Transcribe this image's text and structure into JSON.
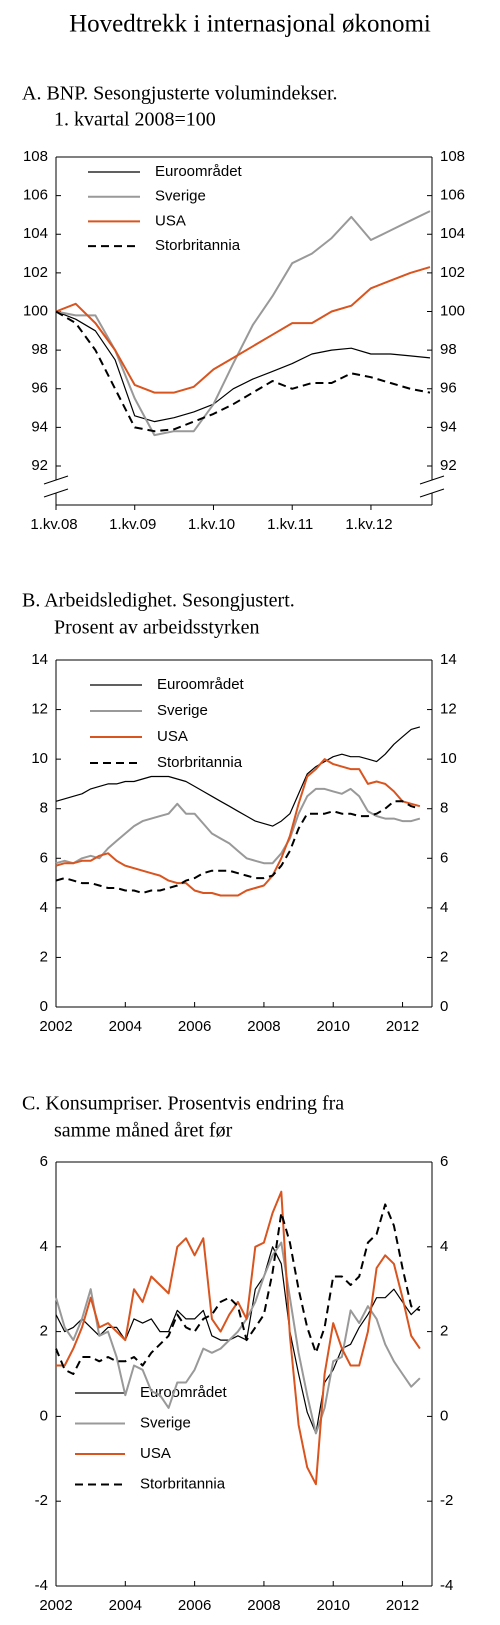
{
  "title": "Hovedtrekk i internasjonal økonomi",
  "chart_data": [
    {
      "type": "line",
      "title": "A. BNP. Sesongjusterte volumindekser.",
      "subtitle": "1. kvartal 2008=100",
      "categories": [
        "1.kv.08",
        null,
        null,
        null,
        "1.kv.09",
        null,
        null,
        null,
        "1.kv.10",
        null,
        null,
        null,
        "1.kv.11",
        null,
        null,
        null,
        "1.kv.12",
        null,
        null,
        null
      ],
      "ylim": [
        92,
        108
      ],
      "yticks": [
        92,
        94,
        96,
        98,
        100,
        102,
        104,
        106,
        108
      ],
      "legend": "upper left",
      "axis_break": true,
      "series": [
        {
          "name": "Euroområdet",
          "color": "#000000",
          "linestyle": "solid",
          "values": [
            100,
            99.6,
            99.0,
            97.5,
            94.6,
            94.3,
            94.5,
            94.8,
            95.2,
            96.0,
            96.5,
            96.9,
            97.3,
            97.8,
            98.0,
            98.1,
            97.8,
            97.8,
            97.7,
            97.6
          ]
        },
        {
          "name": "Sverige",
          "color": "#999999",
          "linestyle": "solid",
          "values": [
            100,
            99.8,
            99.8,
            98.0,
            95.5,
            93.6,
            93.8,
            93.8,
            95.2,
            97.3,
            99.3,
            100.8,
            102.5,
            103.0,
            103.8,
            104.9,
            103.7,
            104.2,
            104.7,
            105.2
          ]
        },
        {
          "name": "USA",
          "color": "#d9541e",
          "linestyle": "solid",
          "values": [
            100,
            100.4,
            99.4,
            98.0,
            96.2,
            95.8,
            95.8,
            96.1,
            97.0,
            97.6,
            98.2,
            98.8,
            99.4,
            99.4,
            100.0,
            100.3,
            101.2,
            101.6,
            102.0,
            102.3
          ]
        },
        {
          "name": "Storbritannia",
          "color": "#000000",
          "linestyle": "dashed",
          "values": [
            100,
            99.4,
            98.0,
            96.0,
            94.0,
            93.8,
            93.9,
            94.3,
            94.7,
            95.2,
            95.8,
            96.4,
            96.0,
            96.3,
            96.3,
            96.8,
            96.6,
            96.3,
            96.0,
            95.8
          ]
        }
      ]
    },
    {
      "type": "line",
      "title": "B. Arbeidsledighet. Sesongjustert.",
      "subtitle": "Prosent av arbeidsstyrken",
      "x": [
        2002,
        2002.25,
        2002.5,
        2002.75,
        2003,
        2003.25,
        2003.5,
        2003.75,
        2004,
        2004.25,
        2004.5,
        2004.75,
        2005,
        2005.25,
        2005.5,
        2005.75,
        2006,
        2006.25,
        2006.5,
        2006.75,
        2007,
        2007.25,
        2007.5,
        2007.75,
        2008,
        2008.25,
        2008.5,
        2008.75,
        2009,
        2009.25,
        2009.5,
        2009.75,
        2010,
        2010.25,
        2010.5,
        2010.75,
        2011,
        2011.25,
        2011.5,
        2011.75,
        2012,
        2012.25,
        2012.5
      ],
      "xlim": [
        2002,
        2012.85
      ],
      "xticks": [
        2002,
        2004,
        2006,
        2008,
        2010,
        2012
      ],
      "ylim": [
        0,
        14
      ],
      "yticks": [
        0,
        2,
        4,
        6,
        8,
        10,
        12,
        14
      ],
      "legend": "upper left",
      "series": [
        {
          "name": "Euroområdet",
          "color": "#000000",
          "linestyle": "solid",
          "values": [
            8.3,
            8.4,
            8.5,
            8.6,
            8.8,
            8.9,
            9.0,
            9.0,
            9.1,
            9.1,
            9.2,
            9.3,
            9.3,
            9.3,
            9.2,
            9.1,
            8.9,
            8.7,
            8.5,
            8.3,
            8.1,
            7.9,
            7.7,
            7.5,
            7.4,
            7.3,
            7.5,
            7.8,
            8.6,
            9.4,
            9.7,
            9.9,
            10.1,
            10.2,
            10.1,
            10.1,
            10.0,
            9.9,
            10.2,
            10.6,
            10.9,
            11.2,
            11.3
          ]
        },
        {
          "name": "Sverige",
          "color": "#999999",
          "linestyle": "solid",
          "values": [
            5.8,
            5.9,
            5.8,
            6.0,
            6.1,
            6.0,
            6.4,
            6.7,
            7.0,
            7.3,
            7.5,
            7.6,
            7.7,
            7.8,
            8.2,
            7.8,
            7.8,
            7.4,
            7.0,
            6.8,
            6.6,
            6.3,
            6.0,
            5.9,
            5.8,
            5.8,
            6.2,
            6.8,
            7.8,
            8.5,
            8.8,
            8.8,
            8.7,
            8.6,
            8.8,
            8.5,
            7.9,
            7.7,
            7.6,
            7.6,
            7.5,
            7.5,
            7.6
          ]
        },
        {
          "name": "USA",
          "color": "#d9541e",
          "linestyle": "solid",
          "values": [
            5.7,
            5.8,
            5.8,
            5.9,
            5.9,
            6.1,
            6.2,
            5.9,
            5.7,
            5.6,
            5.5,
            5.4,
            5.3,
            5.1,
            5.0,
            5.0,
            4.7,
            4.6,
            4.6,
            4.5,
            4.5,
            4.5,
            4.7,
            4.8,
            4.9,
            5.3,
            6.0,
            6.9,
            8.2,
            9.3,
            9.6,
            10.0,
            9.8,
            9.7,
            9.6,
            9.6,
            9.0,
            9.1,
            9.0,
            8.7,
            8.3,
            8.2,
            8.1
          ]
        },
        {
          "name": "Storbritannia",
          "color": "#000000",
          "linestyle": "dashed",
          "values": [
            5.1,
            5.2,
            5.1,
            5.0,
            5.0,
            4.9,
            4.8,
            4.8,
            4.7,
            4.7,
            4.6,
            4.7,
            4.7,
            4.8,
            4.9,
            5.1,
            5.2,
            5.4,
            5.5,
            5.5,
            5.5,
            5.4,
            5.3,
            5.2,
            5.2,
            5.3,
            5.7,
            6.3,
            7.2,
            7.8,
            7.8,
            7.8,
            7.9,
            7.8,
            7.8,
            7.7,
            7.7,
            7.8,
            8.0,
            8.3,
            8.3,
            8.1,
            8.0
          ]
        }
      ]
    },
    {
      "type": "line",
      "title": "C. Konsumpriser. Prosentvis endring fra",
      "subtitle": "samme måned året før",
      "x": [
        2002,
        2002.25,
        2002.5,
        2002.75,
        2003,
        2003.25,
        2003.5,
        2003.75,
        2004,
        2004.25,
        2004.5,
        2004.75,
        2005,
        2005.25,
        2005.5,
        2005.75,
        2006,
        2006.25,
        2006.5,
        2006.75,
        2007,
        2007.25,
        2007.5,
        2007.75,
        2008,
        2008.25,
        2008.5,
        2008.75,
        2009,
        2009.25,
        2009.5,
        2009.75,
        2010,
        2010.25,
        2010.5,
        2010.75,
        2011,
        2011.25,
        2011.5,
        2011.75,
        2012,
        2012.25,
        2012.5
      ],
      "xlim": [
        2002,
        2012.85
      ],
      "xticks": [
        2002,
        2004,
        2006,
        2008,
        2010,
        2012
      ],
      "ylim": [
        -4,
        6
      ],
      "yticks": [
        -4,
        -2,
        0,
        2,
        4,
        6
      ],
      "legend": "lower left",
      "series": [
        {
          "name": "Euroområdet",
          "color": "#000000",
          "linestyle": "solid",
          "values": [
            2.4,
            2.0,
            2.1,
            2.3,
            2.1,
            1.9,
            2.1,
            2.1,
            1.8,
            2.3,
            2.2,
            2.3,
            2.0,
            2.0,
            2.5,
            2.3,
            2.3,
            2.5,
            1.9,
            1.8,
            1.8,
            1.9,
            1.8,
            3.0,
            3.3,
            4.0,
            3.6,
            2.0,
            1.0,
            0.1,
            -0.4,
            0.8,
            1.1,
            1.6,
            1.7,
            2.1,
            2.4,
            2.8,
            2.8,
            3.0,
            2.7,
            2.4,
            2.6
          ]
        },
        {
          "name": "Sverige",
          "color": "#999999",
          "linestyle": "solid",
          "values": [
            2.8,
            2.1,
            1.8,
            2.3,
            3.0,
            1.9,
            2.0,
            1.4,
            0.5,
            1.2,
            1.1,
            0.6,
            0.5,
            0.2,
            0.8,
            0.8,
            1.1,
            1.6,
            1.5,
            1.6,
            1.8,
            2.0,
            2.3,
            2.7,
            3.3,
            3.8,
            4.1,
            2.8,
            1.5,
            0.5,
            -0.4,
            0.2,
            1.3,
            1.4,
            2.5,
            2.2,
            2.6,
            2.3,
            1.7,
            1.3,
            1.0,
            0.7,
            0.9
          ]
        },
        {
          "name": "USA",
          "color": "#d9541e",
          "linestyle": "solid",
          "values": [
            1.2,
            1.2,
            1.6,
            2.1,
            2.8,
            2.1,
            2.2,
            2.0,
            1.8,
            3.0,
            2.7,
            3.3,
            3.1,
            2.9,
            4.0,
            4.2,
            3.8,
            4.2,
            2.3,
            2.0,
            2.4,
            2.7,
            2.3,
            4.0,
            4.1,
            4.8,
            5.3,
            1.9,
            -0.2,
            -1.2,
            -1.6,
            1.0,
            2.2,
            1.6,
            1.2,
            1.2,
            2.0,
            3.5,
            3.8,
            3.6,
            2.8,
            1.9,
            1.6
          ]
        },
        {
          "name": "Storbritannia",
          "color": "#000000",
          "linestyle": "dashed",
          "values": [
            1.6,
            1.1,
            1.0,
            1.4,
            1.4,
            1.3,
            1.4,
            1.3,
            1.3,
            1.4,
            1.2,
            1.5,
            1.7,
            1.9,
            2.4,
            2.1,
            2.0,
            2.3,
            2.4,
            2.7,
            2.8,
            2.6,
            1.8,
            2.1,
            2.4,
            3.4,
            4.8,
            4.1,
            3.0,
            2.1,
            1.5,
            2.1,
            3.3,
            3.3,
            3.1,
            3.3,
            4.1,
            4.3,
            5.0,
            4.5,
            3.5,
            2.6,
            2.5
          ]
        }
      ]
    }
  ]
}
